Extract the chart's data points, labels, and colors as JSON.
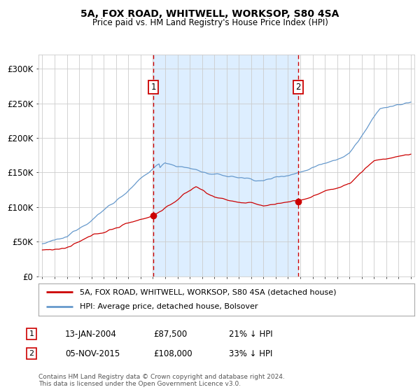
{
  "title": "5A, FOX ROAD, WHITWELL, WORKSOP, S80 4SA",
  "subtitle": "Price paid vs. HM Land Registry's House Price Index (HPI)",
  "legend_line1": "5A, FOX ROAD, WHITWELL, WORKSOP, S80 4SA (detached house)",
  "legend_line2": "HPI: Average price, detached house, Bolsover",
  "annotation1_date": "13-JAN-2004",
  "annotation1_price": "£87,500",
  "annotation1_hpi": "21% ↓ HPI",
  "annotation2_date": "05-NOV-2015",
  "annotation2_price": "£108,000",
  "annotation2_hpi": "33% ↓ HPI",
  "footer1": "Contains HM Land Registry data © Crown copyright and database right 2024.",
  "footer2": "This data is licensed under the Open Government Licence v3.0.",
  "red_line_color": "#cc0000",
  "blue_line_color": "#6699cc",
  "shade_color": "#ddeeff",
  "dashed_line_color": "#cc0000",
  "grid_color": "#cccccc",
  "background_color": "#ffffff",
  "box_color": "#cc0000",
  "ylim": [
    0,
    320000
  ],
  "yticks": [
    0,
    50000,
    100000,
    150000,
    200000,
    250000,
    300000
  ],
  "ytick_labels": [
    "£0",
    "£50K",
    "£100K",
    "£150K",
    "£200K",
    "£250K",
    "£300K"
  ],
  "year_start": 1995,
  "year_end": 2025,
  "sale1_year": 2004.04,
  "sale1_value": 87500,
  "sale2_year": 2015.84,
  "sale2_value": 108000
}
